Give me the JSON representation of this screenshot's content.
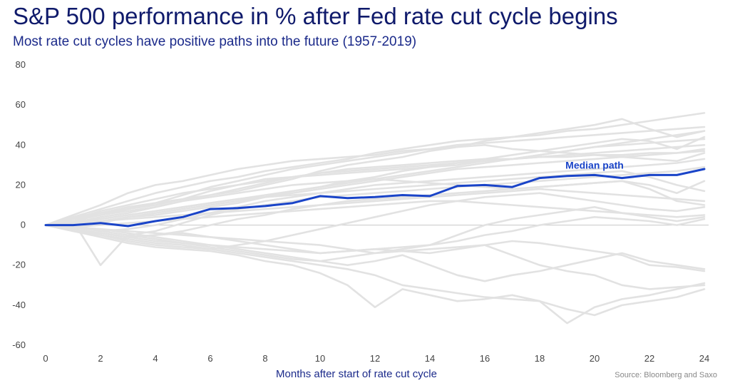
{
  "header": {
    "title": "S&P 500 performance in % after Fed rate cut cycle begins",
    "subtitle": "Most rate cut cycles have positive paths into the future (1957-2019)"
  },
  "source": "Source: Bloomberg and Saxo",
  "colors": {
    "median": "#1a44c8",
    "cycles": "#e2e2e2",
    "zero_line": "#c8c8c8",
    "title": "#0f1a6b"
  },
  "chart_data": {
    "type": "line",
    "title": "S&P 500 performance in % after Fed rate cut cycle begins",
    "subtitle": "Most rate cut cycles have positive paths into the future (1957-2019)",
    "xlabel": "Months after start of rate cut cycle",
    "ylabel": "",
    "xlim": [
      0,
      24
    ],
    "ylim": [
      -60,
      80
    ],
    "x_ticks": [
      0,
      2,
      4,
      6,
      8,
      10,
      12,
      14,
      16,
      18,
      20,
      22,
      24
    ],
    "y_ticks": [
      80,
      60,
      40,
      20,
      0,
      -20,
      -40,
      -60
    ],
    "grid": false,
    "x": [
      0,
      1,
      2,
      3,
      4,
      5,
      6,
      7,
      8,
      9,
      10,
      11,
      12,
      13,
      14,
      15,
      16,
      17,
      18,
      19,
      20,
      21,
      22,
      23,
      24
    ],
    "median": {
      "name": "Median path",
      "values": [
        0,
        0,
        1,
        -0.5,
        2,
        4,
        8,
        8.5,
        9.5,
        11,
        14.5,
        13.5,
        14,
        15,
        14.5,
        19.5,
        20,
        19,
        23.5,
        24.5,
        25,
        23.5,
        25,
        25,
        28
      ]
    },
    "series": [
      {
        "values": [
          0,
          4,
          8,
          12,
          16,
          19,
          22,
          24,
          27,
          29,
          31,
          33,
          36,
          38,
          40,
          42,
          43,
          44,
          45,
          47,
          48,
          50,
          52,
          54,
          56
        ]
      },
      {
        "values": [
          0,
          5,
          10,
          16,
          20,
          22,
          25,
          28,
          30,
          32,
          33,
          34,
          35,
          37,
          38,
          40,
          41,
          42,
          43,
          44,
          45,
          46,
          47,
          48,
          49
        ]
      },
      {
        "values": [
          0,
          3,
          6,
          9,
          11,
          13,
          15,
          17,
          20,
          23,
          27,
          30,
          32,
          34,
          37,
          39,
          42,
          44,
          46,
          48,
          50,
          53,
          48,
          44,
          47
        ]
      },
      {
        "values": [
          0,
          2,
          5,
          8,
          11,
          15,
          19,
          22,
          25,
          28,
          30,
          32,
          34,
          36,
          38,
          39,
          40,
          38,
          37,
          36,
          35,
          34,
          35,
          36,
          38
        ]
      },
      {
        "values": [
          0,
          3,
          7,
          10,
          13,
          16,
          18,
          20,
          22,
          24,
          26,
          27,
          28,
          29,
          30,
          31,
          32,
          33,
          34,
          35,
          36,
          37,
          38,
          39,
          40
        ]
      },
      {
        "values": [
          0,
          1,
          4,
          6,
          9,
          12,
          15,
          18,
          21,
          24,
          26,
          28,
          29,
          30,
          31,
          32,
          33,
          33,
          34,
          34,
          35,
          35,
          36,
          36,
          37
        ]
      },
      {
        "values": [
          0,
          2,
          3,
          5,
          7,
          9,
          11,
          13,
          15,
          17,
          19,
          21,
          23,
          25,
          27,
          29,
          31,
          33,
          35,
          37,
          39,
          41,
          43,
          45,
          47
        ]
      },
      {
        "values": [
          0,
          4,
          6,
          8,
          10,
          13,
          17,
          20,
          23,
          24,
          25,
          26,
          27,
          28,
          29,
          30,
          32,
          33,
          35,
          37,
          39,
          40,
          41,
          42,
          43
        ]
      },
      {
        "values": [
          0,
          -2,
          1,
          4,
          6,
          8,
          10,
          12,
          14,
          17,
          19,
          22,
          24,
          27,
          29,
          31,
          33,
          35,
          37,
          39,
          41,
          43,
          42,
          38,
          44
        ]
      },
      {
        "values": [
          0,
          1,
          2,
          4,
          5,
          7,
          9,
          11,
          14,
          16,
          18,
          20,
          22,
          24,
          26,
          28,
          29,
          30,
          31,
          32,
          33,
          34,
          33,
          32,
          36
        ]
      },
      {
        "values": [
          0,
          -1,
          -3,
          -2,
          0,
          3,
          6,
          9,
          12,
          14,
          16,
          18,
          20,
          21,
          22,
          23,
          24,
          25,
          26,
          27,
          28,
          29,
          30,
          31,
          33
        ]
      },
      {
        "values": [
          0,
          2,
          -20,
          -5,
          -3,
          1,
          5,
          8,
          10,
          12,
          14,
          15,
          16,
          17,
          18,
          19,
          20,
          21,
          22,
          23,
          24,
          25,
          26,
          27,
          29
        ]
      },
      {
        "values": [
          0,
          3,
          5,
          7,
          9,
          12,
          14,
          16,
          18,
          20,
          21,
          22,
          23,
          22,
          21,
          20,
          19,
          18,
          19,
          20,
          21,
          22,
          18,
          12,
          10
        ]
      },
      {
        "values": [
          0,
          1,
          3,
          5,
          7,
          9,
          11,
          13,
          14,
          15,
          16,
          17,
          18,
          19,
          20,
          21,
          22,
          23,
          24,
          25,
          26,
          27,
          24,
          20,
          17
        ]
      },
      {
        "values": [
          0,
          -2,
          -4,
          -6,
          -5,
          -3,
          0,
          3,
          5,
          8,
          10,
          12,
          13,
          14,
          15,
          16,
          17,
          18,
          19,
          20,
          21,
          22,
          20,
          16,
          22
        ]
      },
      {
        "values": [
          0,
          1,
          2,
          3,
          4,
          5,
          6,
          7,
          8,
          9,
          10,
          11,
          12,
          13,
          14,
          15,
          16,
          17,
          18,
          17,
          16,
          15,
          14,
          13,
          12
        ]
      },
      {
        "values": [
          0,
          -1,
          0,
          1,
          2,
          3,
          4,
          5,
          6,
          7,
          8,
          9,
          10,
          11,
          12,
          12,
          11,
          10,
          9,
          8,
          7,
          6,
          5,
          4,
          5
        ]
      },
      {
        "values": [
          0,
          -3,
          -5,
          -7,
          -9,
          -10,
          -12,
          -10,
          -8,
          -5,
          -2,
          1,
          4,
          7,
          10,
          12,
          14,
          15,
          16,
          14,
          12,
          10,
          8,
          7,
          9
        ]
      },
      {
        "values": [
          0,
          -1,
          -3,
          -5,
          -7,
          -9,
          -11,
          -13,
          -15,
          -17,
          -18,
          -16,
          -14,
          -12,
          -10,
          -5,
          0,
          3,
          5,
          7,
          9,
          6,
          4,
          2,
          4
        ]
      },
      {
        "values": [
          0,
          -2,
          -4,
          -6,
          -8,
          -9,
          -10,
          -11,
          -12,
          -13,
          -14,
          -13,
          -12,
          -11,
          -10,
          -8,
          -5,
          -3,
          0,
          2,
          4,
          3,
          2,
          0,
          3
        ]
      },
      {
        "values": [
          0,
          -1,
          -2,
          -4,
          -6,
          -8,
          -10,
          -12,
          -14,
          -16,
          -18,
          -20,
          -18,
          -15,
          -20,
          -25,
          -28,
          -25,
          -23,
          -20,
          -17,
          -14,
          -18,
          -20,
          -22
        ]
      },
      {
        "values": [
          0,
          -2,
          -5,
          -8,
          -10,
          -11,
          -12,
          -14,
          -16,
          -18,
          -20,
          -22,
          -25,
          -30,
          -32,
          -34,
          -36,
          -37,
          -38,
          -42,
          -45,
          -40,
          -38,
          -36,
          -32
        ]
      },
      {
        "values": [
          0,
          -3,
          -6,
          -9,
          -11,
          -12,
          -13,
          -15,
          -18,
          -20,
          -24,
          -30,
          -41,
          -32,
          -35,
          -38,
          -37,
          -35,
          -38,
          -49,
          -41,
          -37,
          -35,
          -32,
          -29
        ]
      },
      {
        "values": [
          0,
          -1,
          -2,
          -3,
          -4,
          -5,
          -6,
          -7,
          -8,
          -9,
          -10,
          -12,
          -14,
          -13,
          -12,
          -11,
          -10,
          -15,
          -20,
          -23,
          -25,
          -30,
          -32,
          -31,
          -30
        ]
      },
      {
        "values": [
          0,
          -2,
          -4,
          -6,
          -5,
          -4,
          -6,
          -8,
          -10,
          -12,
          -14,
          -13,
          -12,
          -13,
          -14,
          -12,
          -10,
          -8,
          -9,
          -11,
          -13,
          -15,
          -20,
          -21,
          -23
        ]
      }
    ],
    "annotations": [
      {
        "text": "Median path",
        "x": 20,
        "y": 30
      }
    ]
  }
}
